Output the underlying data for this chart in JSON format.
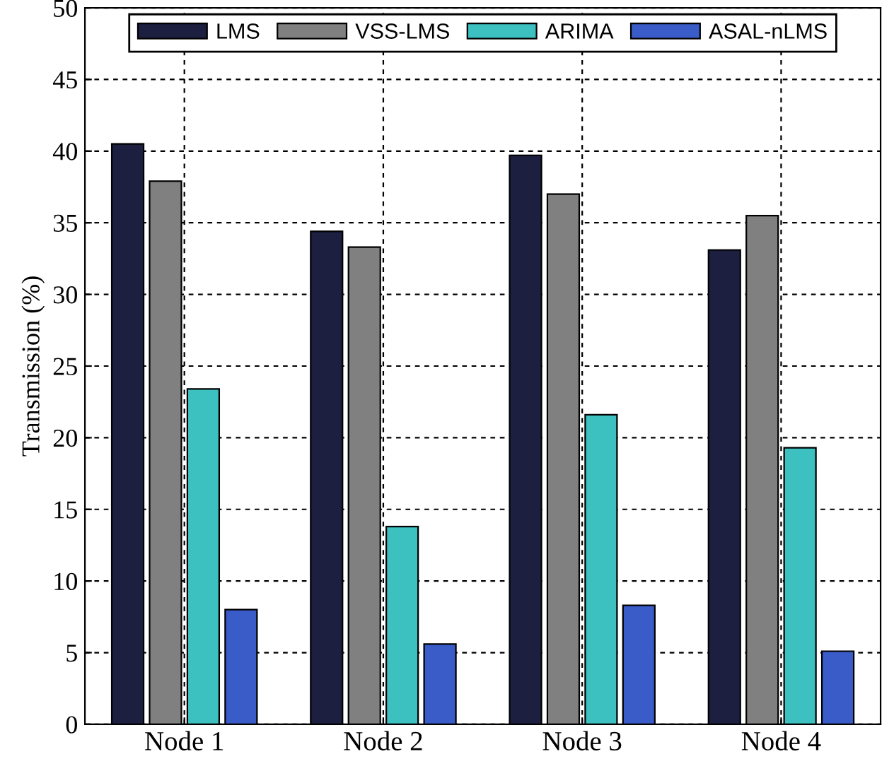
{
  "chart_data": {
    "type": "bar",
    "ylabel": "Transmission (%)",
    "categories": [
      "Node 1",
      "Node 2",
      "Node 3",
      "Node 4"
    ],
    "series": [
      {
        "name": "LMS",
        "color": "#1c1f40",
        "values": [
          40.5,
          34.4,
          39.7,
          33.1
        ]
      },
      {
        "name": "VSS-LMS",
        "color": "#808080",
        "values": [
          37.9,
          33.3,
          37.0,
          35.5
        ]
      },
      {
        "name": "ARIMA",
        "color": "#3cc0c0",
        "values": [
          23.4,
          13.8,
          21.6,
          19.3
        ]
      },
      {
        "name": "ASAL-nLMS",
        "color": "#3a5cc8",
        "values": [
          8.0,
          5.6,
          8.3,
          5.1
        ]
      }
    ],
    "ylim": [
      0,
      50
    ],
    "yticks": [
      0,
      5,
      10,
      15,
      20,
      25,
      30,
      35,
      40,
      45,
      50
    ],
    "grid": true,
    "legend": "top"
  }
}
